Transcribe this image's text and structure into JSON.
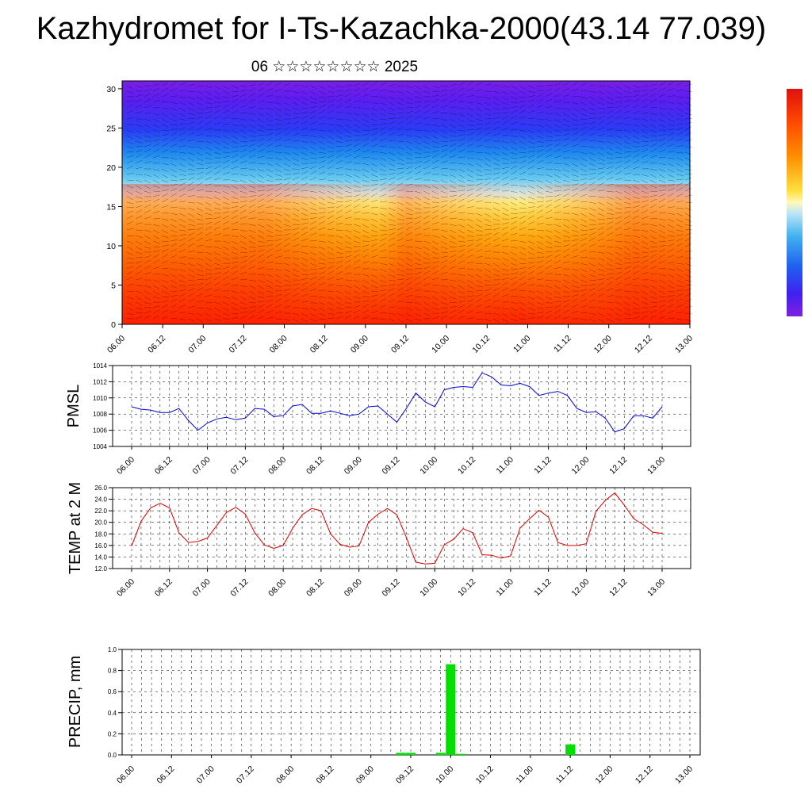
{
  "title": "Kazhydromet for I-Ts-Kazachka-2000(43.14 77.039)",
  "subtitle": "06 ☆☆☆☆☆☆☆☆ 2025",
  "chart_data": [
    {
      "type": "heatmap",
      "name": "cross-section",
      "x_ticks": [
        "06.00",
        "06.12",
        "07.00",
        "07.12",
        "08.00",
        "08.12",
        "09.00",
        "09.12",
        "10.00",
        "10.12",
        "11.00",
        "11.12",
        "12.00",
        "12.12",
        "13.00"
      ],
      "y_ticks": [
        "0",
        "5",
        "10",
        "15",
        "20",
        "25",
        "30"
      ],
      "ylim": [
        0,
        31
      ],
      "colorbar": true,
      "overlay": "wind barbs"
    },
    {
      "type": "line",
      "name": "pmsl",
      "ylabel": "PMSL",
      "color": "#0000dd",
      "x_ticks": [
        "06.00",
        "06.12",
        "07.00",
        "07.12",
        "08.00",
        "08.12",
        "09.00",
        "09.12",
        "10.00",
        "10.12",
        "11.00",
        "11.12",
        "12.00",
        "12.12",
        "13.00"
      ],
      "y_ticks": [
        "1004",
        "1006",
        "1008",
        "1010",
        "1012",
        "1014"
      ],
      "ylim": [
        1004,
        1014
      ],
      "values": [
        1008.9,
        1008.6,
        1008.5,
        1008.2,
        1008.2,
        1008.7,
        1007.2,
        1006.0,
        1006.9,
        1007.4,
        1007.6,
        1007.3,
        1007.5,
        1008.7,
        1008.6,
        1007.7,
        1007.8,
        1009.0,
        1009.2,
        1008.1,
        1008.1,
        1008.4,
        1008.1,
        1007.8,
        1008.0,
        1008.9,
        1009.0,
        1008.0,
        1007.0,
        1008.7,
        1010.6,
        1009.5,
        1008.9,
        1011.0,
        1011.3,
        1011.4,
        1011.3,
        1013.1,
        1012.6,
        1011.6,
        1011.5,
        1011.8,
        1011.4,
        1010.3,
        1010.6,
        1010.8,
        1010.3,
        1008.7,
        1008.2,
        1008.3,
        1007.5,
        1005.8,
        1006.2,
        1007.8,
        1007.8,
        1007.5,
        1008.9
      ]
    },
    {
      "type": "line",
      "name": "temp",
      "ylabel": "TEMP at 2 M",
      "color": "#dd0000",
      "x_ticks": [
        "06.00",
        "06.12",
        "07.00",
        "07.12",
        "08.00",
        "08.12",
        "09.00",
        "09.12",
        "10.00",
        "10.12",
        "11.00",
        "11.12",
        "12.00",
        "12.12",
        "13.00"
      ],
      "y_ticks": [
        "12.0",
        "14.0",
        "16.0",
        "18.0",
        "20.0",
        "22.0",
        "24.0",
        "26.0"
      ],
      "ylim": [
        12,
        26
      ],
      "values": [
        15.9,
        20.2,
        22.5,
        23.3,
        22.5,
        18.2,
        16.5,
        16.7,
        17.3,
        19.5,
        21.7,
        22.6,
        21.4,
        18.2,
        16.1,
        15.5,
        16.0,
        19.0,
        21.3,
        22.4,
        22.0,
        18.0,
        16.2,
        15.7,
        15.9,
        20.0,
        21.4,
        22.4,
        21.3,
        17.4,
        13.1,
        12.8,
        12.9,
        16.1,
        17.1,
        18.9,
        18.2,
        14.4,
        14.3,
        13.8,
        14.2,
        19.0,
        20.6,
        22.1,
        20.9,
        16.5,
        16.0,
        16.0,
        16.3,
        21.9,
        23.8,
        25.1,
        23.0,
        20.6,
        19.6,
        18.3,
        18.1
      ]
    },
    {
      "type": "bar",
      "name": "precip",
      "ylabel": "PRECIP, mm",
      "color": "#00e000",
      "x_ticks": [
        "06.00",
        "06.12",
        "07.00",
        "07.12",
        "08.00",
        "08.12",
        "09.00",
        "09.12",
        "10.00",
        "10.12",
        "11.00",
        "11.12",
        "12.00",
        "12.12",
        "13.00"
      ],
      "y_ticks": [
        "0.0",
        "0.2",
        "0.4",
        "0.6",
        "0.8",
        "1.0"
      ],
      "ylim": [
        0,
        1
      ],
      "values": [
        0,
        0,
        0,
        0,
        0,
        0,
        0,
        0,
        0,
        0,
        0,
        0,
        0,
        0,
        0,
        0,
        0,
        0,
        0,
        0,
        0,
        0,
        0,
        0,
        0,
        0,
        0,
        0.02,
        0.02,
        0,
        0,
        0.02,
        0.86,
        0.01,
        0,
        0,
        0,
        0,
        0,
        0,
        0,
        0,
        0,
        0,
        0.1,
        0,
        0,
        0,
        0,
        0,
        0,
        0,
        0,
        0,
        0,
        0,
        0
      ]
    }
  ]
}
